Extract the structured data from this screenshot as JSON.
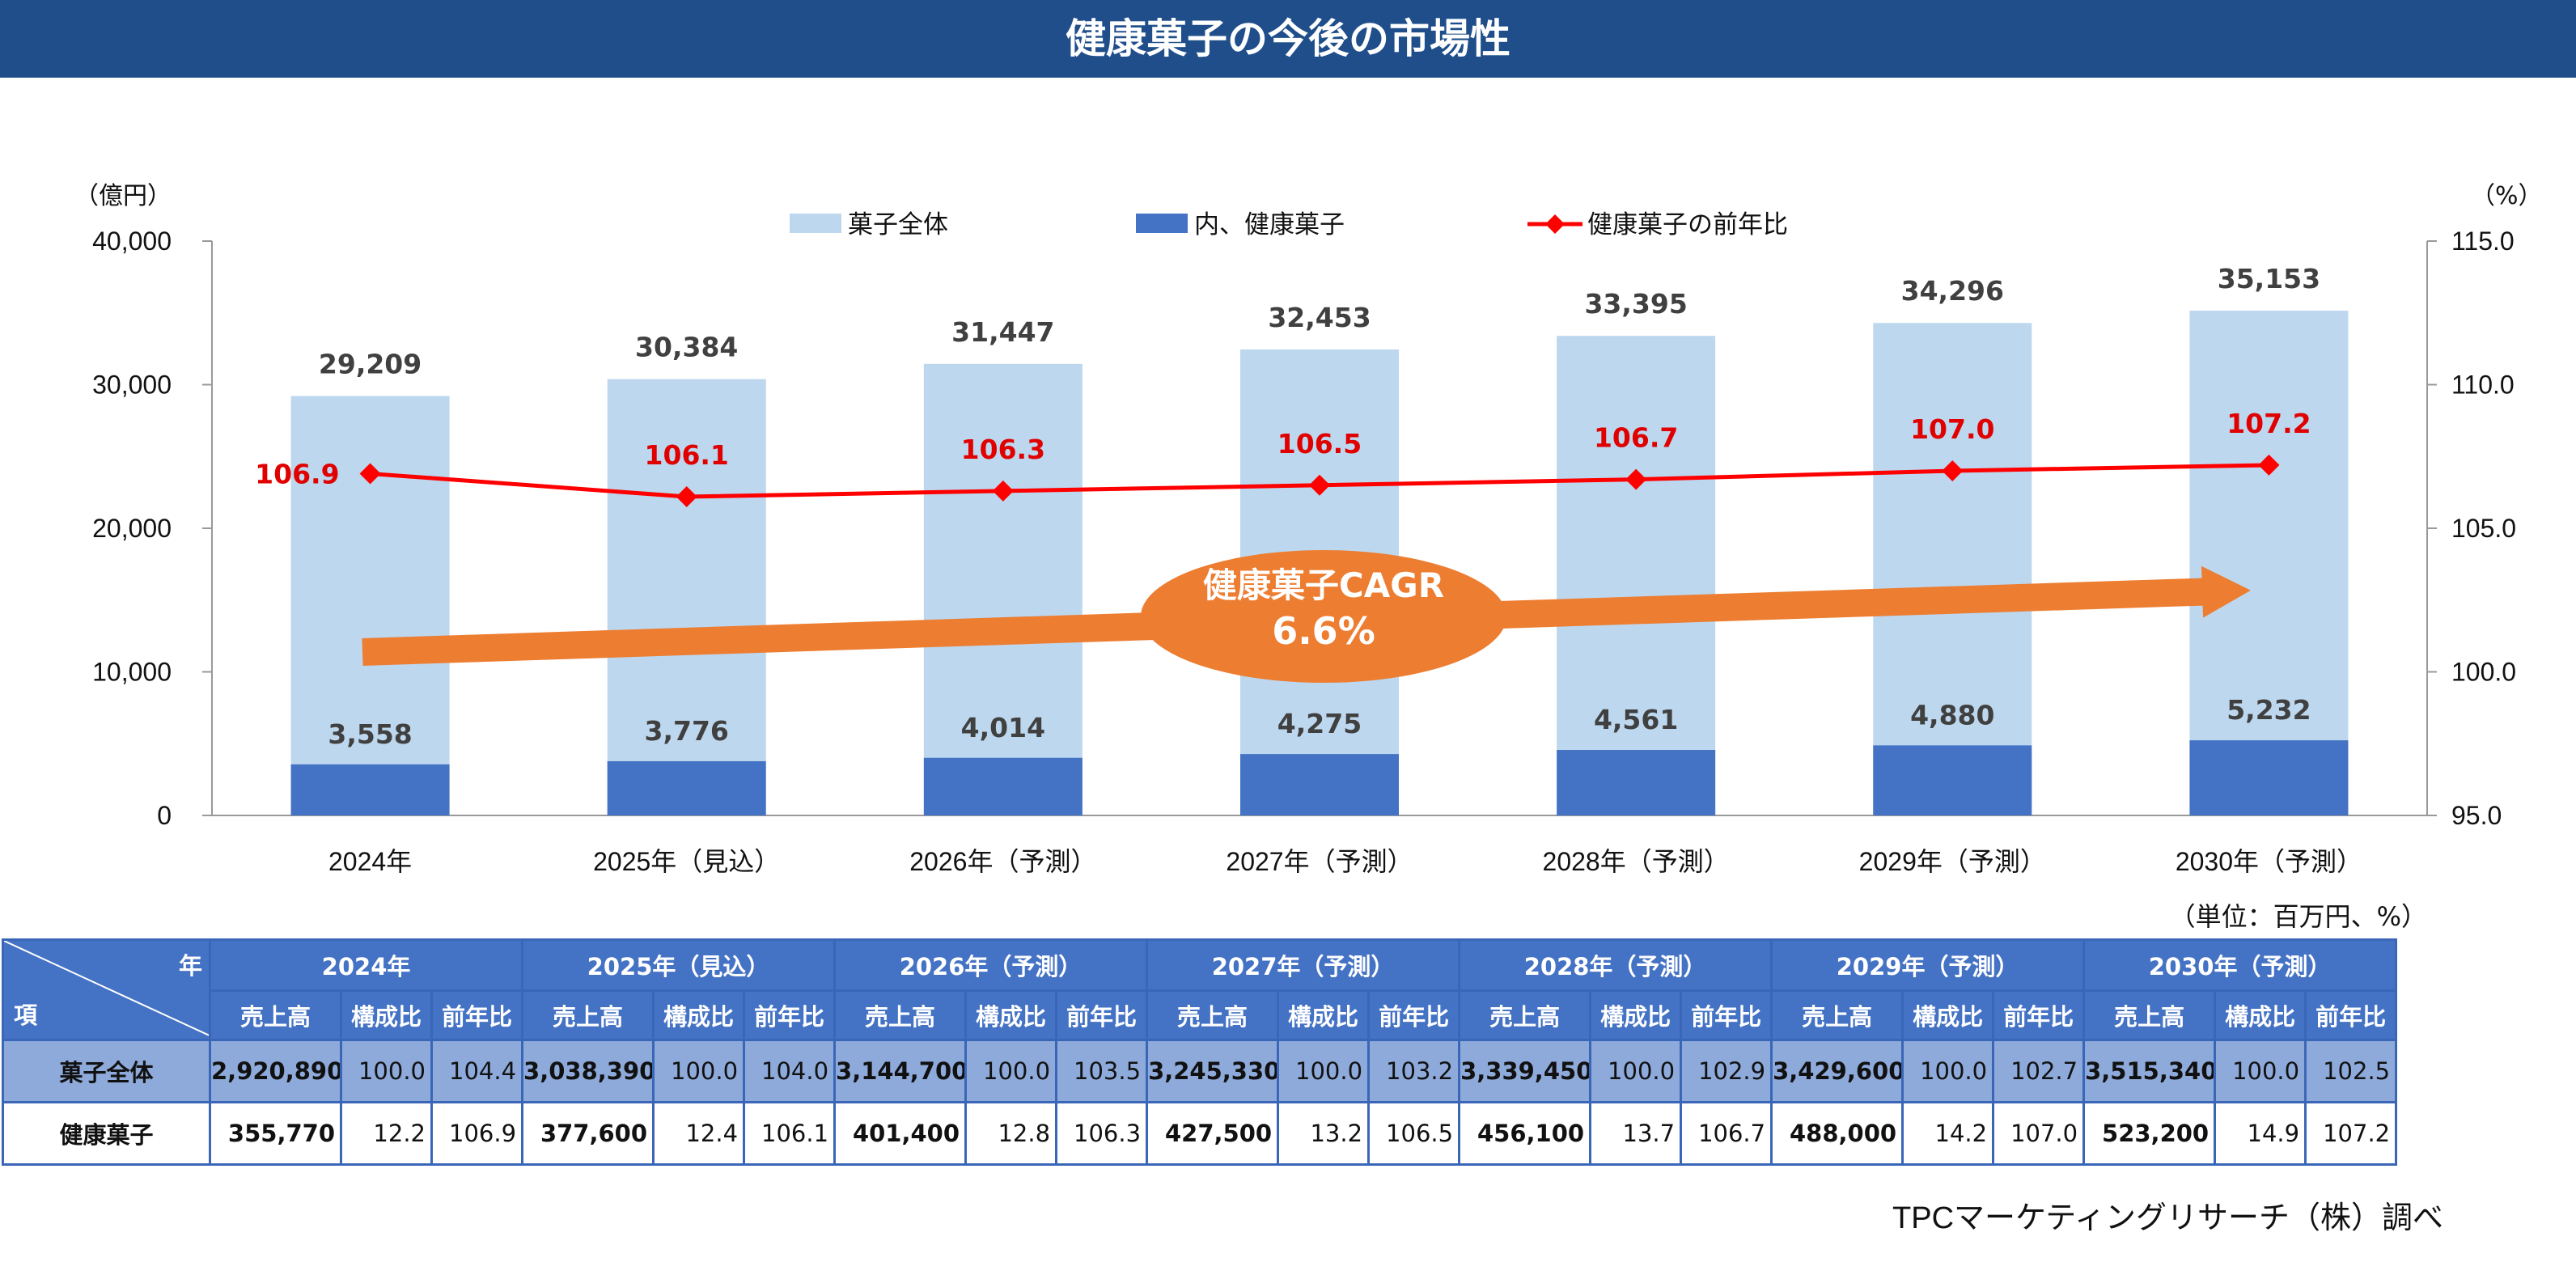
{
  "title": "健康菓子の今後の市場性",
  "chart_data": {
    "type": "bar",
    "categories": [
      "2024年",
      "2025年（見込）",
      "2026年（予測）",
      "2027年（予測）",
      "2028年（予測）",
      "2029年（予測）",
      "2030年（予測）"
    ],
    "series": [
      {
        "name": "菓子全体",
        "axis": "left",
        "kind": "bar",
        "color": "#bdd7ee",
        "values": [
          29209,
          30384,
          31447,
          32453,
          33395,
          34296,
          35153
        ],
        "labels": [
          "29,209",
          "30,384",
          "31,447",
          "32,453",
          "33,395",
          "34,296",
          "35,153"
        ]
      },
      {
        "name": "内、健康菓子",
        "axis": "left",
        "kind": "bar",
        "color": "#4472c4",
        "values": [
          3558,
          3776,
          4014,
          4275,
          4561,
          4880,
          5232
        ],
        "labels": [
          "3,558",
          "3,776",
          "4,014",
          "4,275",
          "4,561",
          "4,880",
          "5,232"
        ]
      },
      {
        "name": "健康菓子の前年比",
        "axis": "right",
        "kind": "line",
        "color": "#ff0000",
        "values": [
          106.9,
          106.1,
          106.3,
          106.5,
          106.7,
          107.0,
          107.2
        ],
        "labels": [
          "106.9",
          "106.1",
          "106.3",
          "106.5",
          "106.7",
          "107.0",
          "107.2"
        ]
      }
    ],
    "left_axis": {
      "unit": "（億円）",
      "ylim": [
        0,
        40000
      ],
      "ticks": [
        0,
        10000,
        20000,
        30000,
        40000
      ],
      "tick_labels": [
        "0",
        "10,000",
        "20,000",
        "30,000",
        "40,000"
      ]
    },
    "right_axis": {
      "unit": "（%）",
      "ylim": [
        95.0,
        115.0
      ],
      "ticks": [
        95,
        100,
        105,
        110,
        115
      ],
      "tick_labels": [
        "95.0",
        "100.0",
        "105.0",
        "110.0",
        "115.0"
      ]
    },
    "annotation": {
      "line1": "健康菓子CAGR",
      "line2": "6.6%",
      "color": "#ed7d31"
    },
    "legend_position": "top"
  },
  "table": {
    "unit_note": "（単位：百万円、%）",
    "corner_top": "年",
    "corner_bottom": "項",
    "years": [
      "2024年",
      "2025年（見込）",
      "2026年（予測）",
      "2027年（予測）",
      "2028年（予測）",
      "2029年（予測）",
      "2030年（予測）"
    ],
    "subheaders": [
      "売上高",
      "構成比",
      "前年比"
    ],
    "rows": [
      {
        "label": "菓子全体",
        "cells": [
          [
            "2,920,890",
            "100.0",
            "104.4"
          ],
          [
            "3,038,390",
            "100.0",
            "104.0"
          ],
          [
            "3,144,700",
            "100.0",
            "103.5"
          ],
          [
            "3,245,330",
            "100.0",
            "103.2"
          ],
          [
            "3,339,450",
            "100.0",
            "102.9"
          ],
          [
            "3,429,600",
            "100.0",
            "102.7"
          ],
          [
            "3,515,340",
            "100.0",
            "102.5"
          ]
        ]
      },
      {
        "label": "健康菓子",
        "cells": [
          [
            "355,770",
            "12.2",
            "106.9"
          ],
          [
            "377,600",
            "12.4",
            "106.1"
          ],
          [
            "401,400",
            "12.8",
            "106.3"
          ],
          [
            "427,500",
            "13.2",
            "106.5"
          ],
          [
            "456,100",
            "13.7",
            "106.7"
          ],
          [
            "488,000",
            "14.2",
            "107.0"
          ],
          [
            "523,200",
            "14.9",
            "107.2"
          ]
        ]
      }
    ]
  },
  "source": "TPCマーケティングリサーチ（株）調べ"
}
